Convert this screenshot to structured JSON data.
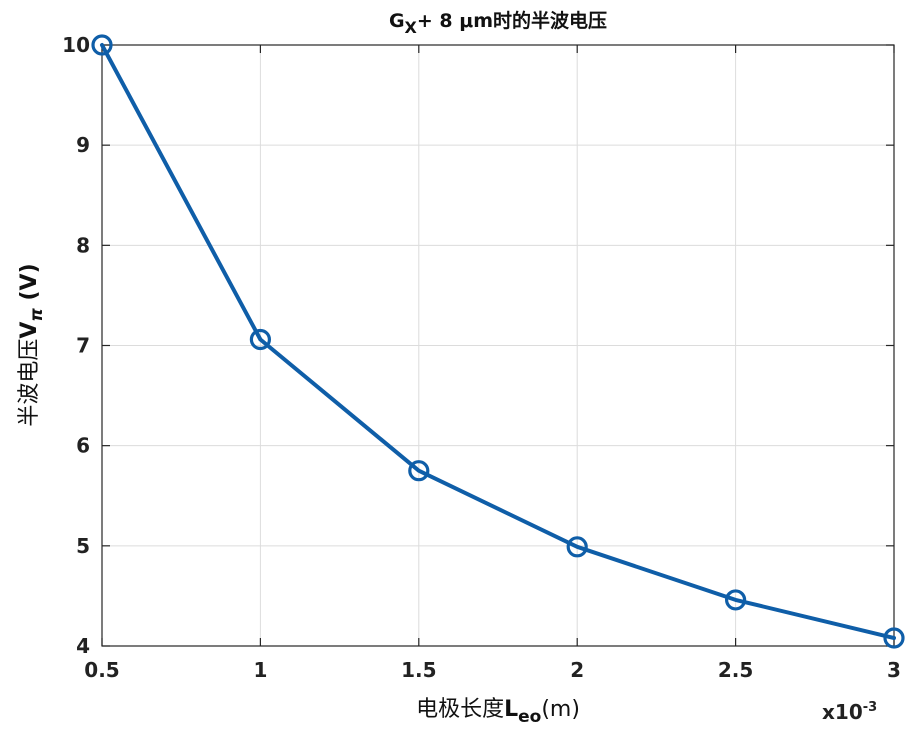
{
  "chart_data": {
    "type": "line",
    "title": {
      "main": "G",
      "sub": "X",
      "rest": "+ 8 μm时的半波电压"
    },
    "xlabel": {
      "main": "电极长度",
      "bold": "L",
      "sub": "eo",
      "rest": "(m)"
    },
    "ylabel": {
      "main": "半波电压",
      "bold": "V",
      "sub": "π",
      "rest": " (V)"
    },
    "x_multiplier": {
      "base": "x10",
      "exp": "-3"
    },
    "x_ticks": [
      "0.5",
      "1",
      "1.5",
      "2",
      "2.5",
      "3"
    ],
    "y_ticks": [
      "4",
      "5",
      "6",
      "7",
      "8",
      "9",
      "10"
    ],
    "xlim": [
      0.0005,
      0.003
    ],
    "ylim": [
      4,
      10
    ],
    "grid": true,
    "series": [
      {
        "x": [
          0.0005,
          0.001,
          0.0015,
          0.002,
          0.0025,
          0.003
        ],
        "y": [
          10.0,
          7.06,
          5.75,
          4.99,
          4.46,
          4.08
        ],
        "marker": "circle",
        "color": "#0f5ea8"
      }
    ]
  }
}
